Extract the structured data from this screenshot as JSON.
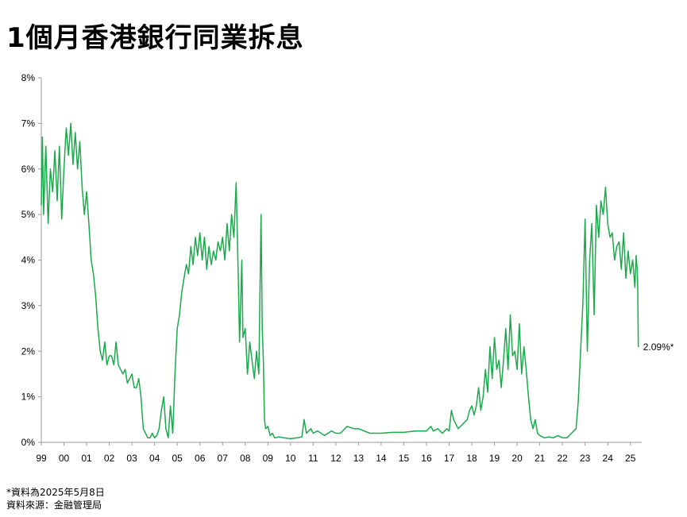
{
  "title": "1個月香港銀行同業拆息",
  "notes": {
    "line1": "*資料為2025年5月8日",
    "line2": "資料來源：金融管理局"
  },
  "chart_data": {
    "type": "line",
    "title": "1個月香港銀行同業拆息",
    "xlabel": "",
    "ylabel": "",
    "x_ticks": [
      "99",
      "00",
      "01",
      "02",
      "03",
      "04",
      "05",
      "06",
      "07",
      "08",
      "09",
      "10",
      "11",
      "12",
      "13",
      "14",
      "15",
      "16",
      "17",
      "18",
      "19",
      "20",
      "21",
      "22",
      "23",
      "24",
      "25"
    ],
    "y_ticks": [
      "0%",
      "1%",
      "2%",
      "3%",
      "4%",
      "5%",
      "6%",
      "7%",
      "8%"
    ],
    "xlim": [
      1999.0,
      2025.5
    ],
    "ylim": [
      0,
      8
    ],
    "grid": false,
    "color": "#1aaa4b",
    "end_label": "2.09%*",
    "series": [
      {
        "x": [
          1999.0,
          1999.05,
          1999.1,
          1999.2,
          1999.3,
          1999.4,
          1999.5,
          1999.6,
          1999.7,
          1999.8,
          1999.9,
          2000.0,
          2000.1,
          2000.2,
          2000.3,
          2000.4,
          2000.5,
          2000.6,
          2000.7,
          2000.8,
          2000.9,
          2001.0,
          2001.1,
          2001.2,
          2001.3,
          2001.4,
          2001.5,
          2001.6,
          2001.7,
          2001.8,
          2001.9,
          2002.0,
          2002.1,
          2002.2,
          2002.3,
          2002.4,
          2002.5,
          2002.6,
          2002.7,
          2002.8,
          2002.9,
          2003.0,
          2003.1,
          2003.2,
          2003.3,
          2003.4,
          2003.5,
          2003.6,
          2003.7,
          2003.8,
          2003.9,
          2004.0,
          2004.1,
          2004.2,
          2004.3,
          2004.4,
          2004.5,
          2004.6,
          2004.7,
          2004.8,
          2004.9,
          2005.0,
          2005.1,
          2005.2,
          2005.3,
          2005.4,
          2005.5,
          2005.6,
          2005.7,
          2005.8,
          2005.9,
          2006.0,
          2006.1,
          2006.2,
          2006.3,
          2006.4,
          2006.5,
          2006.6,
          2006.7,
          2006.8,
          2006.9,
          2007.0,
          2007.1,
          2007.2,
          2007.3,
          2007.4,
          2007.5,
          2007.6,
          2007.7,
          2007.75,
          2007.8,
          2007.85,
          2007.9,
          2008.0,
          2008.1,
          2008.2,
          2008.3,
          2008.4,
          2008.5,
          2008.6,
          2008.7,
          2008.75,
          2008.8,
          2008.85,
          2008.9,
          2009.0,
          2009.1,
          2009.2,
          2009.3,
          2009.5,
          2009.7,
          2010.0,
          2010.3,
          2010.5,
          2010.6,
          2010.7,
          2010.9,
          2011.0,
          2011.2,
          2011.5,
          2011.8,
          2012.0,
          2012.2,
          2012.5,
          2012.8,
          2013.0,
          2013.5,
          2014.0,
          2014.5,
          2015.0,
          2015.5,
          2016.0,
          2016.1,
          2016.2,
          2016.3,
          2016.5,
          2016.7,
          2016.8,
          2016.9,
          2017.0,
          2017.1,
          2017.2,
          2017.4,
          2017.6,
          2017.8,
          2017.9,
          2018.0,
          2018.1,
          2018.2,
          2018.3,
          2018.4,
          2018.5,
          2018.6,
          2018.7,
          2018.8,
          2018.9,
          2019.0,
          2019.1,
          2019.2,
          2019.3,
          2019.4,
          2019.5,
          2019.6,
          2019.7,
          2019.8,
          2019.9,
          2020.0,
          2020.1,
          2020.2,
          2020.3,
          2020.4,
          2020.5,
          2020.6,
          2020.7,
          2020.8,
          2020.9,
          2021.0,
          2021.2,
          2021.4,
          2021.6,
          2021.8,
          2022.0,
          2022.2,
          2022.4,
          2022.5,
          2022.6,
          2022.7,
          2022.8,
          2022.9,
          2023.0,
          2023.1,
          2023.2,
          2023.3,
          2023.4,
          2023.5,
          2023.6,
          2023.7,
          2023.8,
          2023.9,
          2024.0,
          2024.1,
          2024.2,
          2024.3,
          2024.4,
          2024.5,
          2024.6,
          2024.7,
          2024.8,
          2024.9,
          2025.0,
          2025.1,
          2025.2,
          2025.25,
          2025.3,
          2025.32,
          2025.35
        ],
        "values": [
          5.2,
          6.7,
          5.0,
          6.5,
          4.8,
          6.0,
          5.5,
          6.4,
          5.3,
          6.5,
          4.9,
          6.0,
          6.9,
          6.3,
          7.0,
          6.1,
          6.8,
          6.0,
          6.6,
          5.6,
          5.0,
          5.5,
          4.8,
          4.0,
          3.7,
          3.2,
          2.5,
          2.0,
          1.8,
          2.2,
          1.7,
          1.9,
          1.9,
          1.7,
          2.2,
          1.7,
          1.6,
          1.5,
          1.6,
          1.3,
          1.4,
          1.5,
          1.2,
          1.2,
          1.4,
          1.0,
          0.3,
          0.2,
          0.1,
          0.1,
          0.2,
          0.1,
          0.15,
          0.3,
          0.7,
          1.0,
          0.3,
          0.1,
          0.8,
          0.2,
          1.5,
          2.5,
          2.8,
          3.3,
          3.6,
          3.9,
          3.7,
          4.3,
          3.9,
          4.5,
          4.1,
          4.6,
          4.0,
          4.5,
          3.8,
          4.3,
          3.9,
          4.2,
          4.0,
          4.4,
          4.2,
          4.5,
          4.0,
          4.8,
          4.2,
          5.0,
          4.5,
          5.7,
          3.5,
          2.2,
          3.0,
          4.0,
          2.3,
          2.5,
          1.5,
          2.2,
          1.8,
          1.4,
          2.0,
          1.5,
          5.0,
          2.5,
          1.8,
          0.5,
          0.3,
          0.35,
          0.15,
          0.2,
          0.1,
          0.12,
          0.1,
          0.08,
          0.1,
          0.12,
          0.5,
          0.2,
          0.3,
          0.2,
          0.25,
          0.15,
          0.25,
          0.2,
          0.2,
          0.35,
          0.3,
          0.3,
          0.2,
          0.2,
          0.22,
          0.22,
          0.25,
          0.25,
          0.3,
          0.35,
          0.25,
          0.3,
          0.2,
          0.25,
          0.3,
          0.25,
          0.7,
          0.5,
          0.3,
          0.4,
          0.5,
          0.7,
          0.8,
          0.6,
          0.8,
          1.2,
          0.7,
          1.0,
          1.6,
          1.1,
          2.1,
          1.4,
          2.3,
          1.6,
          1.8,
          1.2,
          1.8,
          2.5,
          1.6,
          2.8,
          1.9,
          2.0,
          1.6,
          2.6,
          1.5,
          2.1,
          1.6,
          1.0,
          0.5,
          0.3,
          0.5,
          0.2,
          0.15,
          0.1,
          0.12,
          0.1,
          0.15,
          0.1,
          0.1,
          0.2,
          0.25,
          0.3,
          0.9,
          2.0,
          3.0,
          4.9,
          2.0,
          4.0,
          4.8,
          2.8,
          5.2,
          4.5,
          5.3,
          5.0,
          5.6,
          4.8,
          4.5,
          4.6,
          4.0,
          4.3,
          4.4,
          3.8,
          4.6,
          3.6,
          4.2,
          3.7,
          4.0,
          3.4,
          4.1,
          3.8,
          3.5,
          2.09
        ]
      }
    ]
  }
}
